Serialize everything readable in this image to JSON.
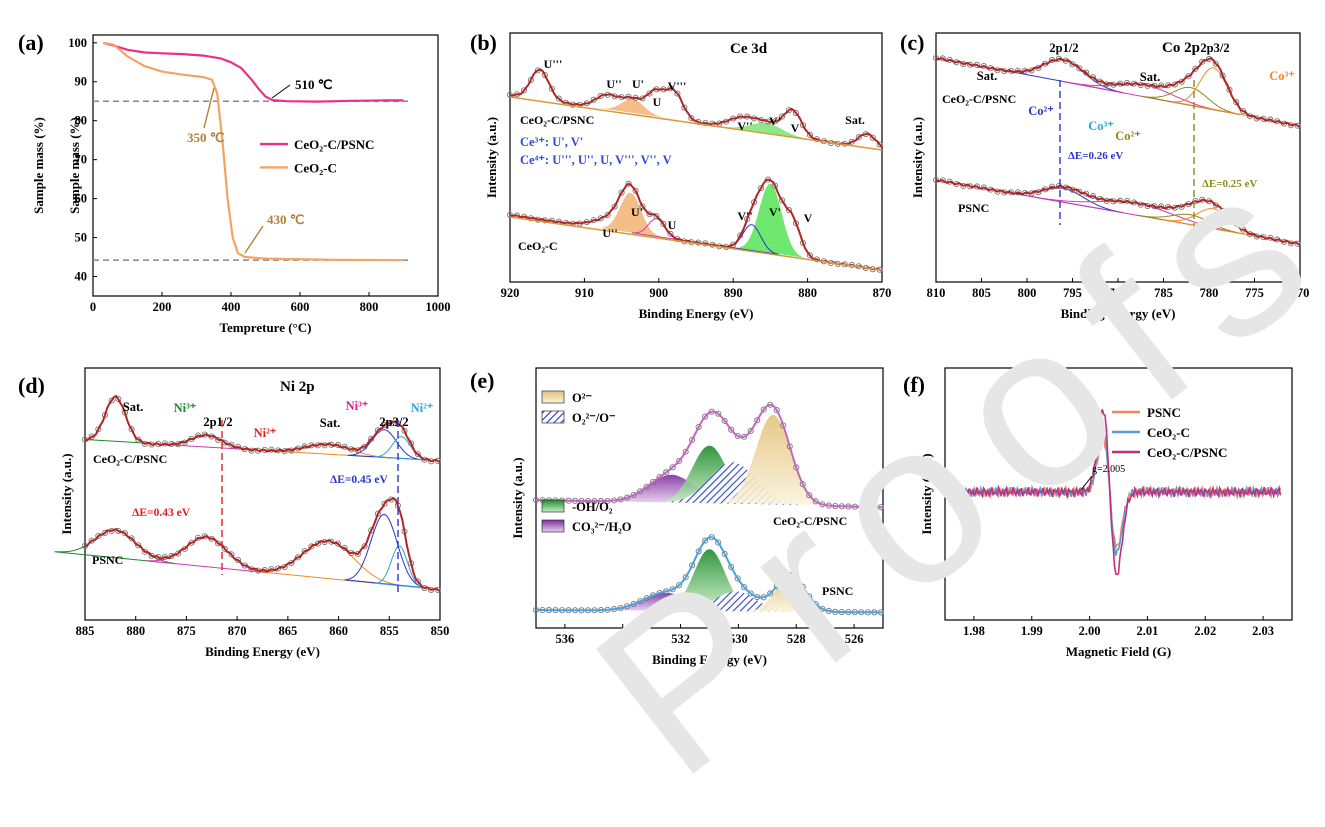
{
  "watermark": "Proofs",
  "panels": {
    "a": {
      "label": "(a)",
      "chart_data": {
        "type": "line",
        "xlabel": "Tempreture (°C)",
        "ylabel": "Sample mass (%)",
        "xlim": [
          0,
          1000
        ],
        "ylim": [
          35,
          102
        ],
        "xticks": [
          0,
          200,
          400,
          600,
          800,
          1000
        ],
        "yticks": [
          40,
          50,
          60,
          70,
          80,
          90,
          100
        ],
        "series": [
          {
            "name": "CeO₂-C/PSNC",
            "color": "#e8308a",
            "points": [
              [
                30,
                100
              ],
              [
                60,
                99.3
              ],
              [
                100,
                98.2
              ],
              [
                150,
                97.5
              ],
              [
                200,
                97.3
              ],
              [
                260,
                97.1
              ],
              [
                320,
                96.7
              ],
              [
                370,
                96
              ],
              [
                400,
                95
              ],
              [
                430,
                93.5
              ],
              [
                460,
                90.5
              ],
              [
                480,
                88.2
              ],
              [
                500,
                86.2
              ],
              [
                520,
                85.3
              ],
              [
                560,
                85
              ],
              [
                650,
                84.9
              ],
              [
                750,
                85.1
              ],
              [
                850,
                85.2
              ],
              [
                900,
                85.2
              ]
            ]
          },
          {
            "name": "CeO₂-C",
            "color": "#f4a460",
            "points": [
              [
                30,
                100
              ],
              [
                60,
                99.5
              ],
              [
                100,
                96.5
              ],
              [
                150,
                94
              ],
              [
                200,
                92.6
              ],
              [
                260,
                91.8
              ],
              [
                320,
                91.2
              ],
              [
                345,
                90.5
              ],
              [
                360,
                87
              ],
              [
                375,
                75
              ],
              [
                390,
                60
              ],
              [
                405,
                50
              ],
              [
                420,
                46
              ],
              [
                440,
                45
              ],
              [
                500,
                44.6
              ],
              [
                700,
                44.3
              ],
              [
                900,
                44.2
              ]
            ]
          }
        ],
        "reference_lines": [
          85,
          44.2
        ],
        "annotations": [
          {
            "text": "510 ℃",
            "x": 510,
            "y": 85
          },
          {
            "text": "350 ℃",
            "x": 350,
            "y": 91
          },
          {
            "text": "430 ℃",
            "x": 430,
            "y": 45
          }
        ]
      }
    },
    "b": {
      "label": "(b)",
      "chart_data": {
        "type": "line",
        "title": "Ce 3d",
        "xlabel": "Binding Energy (eV)",
        "ylabel": "Intensity (a.u.)",
        "xlim": [
          920,
          870
        ],
        "xticks": [
          920,
          910,
          900,
          890,
          880,
          870
        ],
        "series_names": [
          "CeO₂-C/PSNC",
          "CeO₂-C"
        ],
        "peak_labels": [
          "U'''",
          "U''",
          "U'",
          "U",
          "V'''",
          "V''",
          "V'",
          "V",
          "Sat.",
          "U''",
          "U'",
          "U",
          "V''",
          "V'",
          "V"
        ],
        "legend": [
          "Ce³⁺: U', V'",
          "Ce⁴⁺: U''', U'', U, V''', V'', V"
        ]
      }
    },
    "c": {
      "label": "(c)",
      "chart_data": {
        "type": "line",
        "title": "Co 2p",
        "xlabel": "Binding Energy (eV)",
        "ylabel": "Intensity (a.u.)",
        "xlim": [
          810,
          770
        ],
        "xticks": [
          810,
          805,
          800,
          795,
          790,
          785,
          780,
          775,
          770
        ],
        "series_names": [
          "CeO₂-C/PSNC",
          "PSNC"
        ],
        "peak_labels": [
          "Sat.",
          "2p1/2",
          "2p3/2",
          "Sat.",
          "Co²⁺",
          "Co³⁺",
          "Co²⁺",
          "Co³⁺"
        ],
        "annotations": [
          "ΔE=0.26 eV",
          "ΔE=0.25 eV"
        ]
      }
    },
    "d": {
      "label": "(d)",
      "chart_data": {
        "type": "line",
        "title": "Ni 2p",
        "xlabel": "Binding Energy (eV)",
        "ylabel": "Intensity (a.u.)",
        "xlim": [
          885,
          850
        ],
        "xticks": [
          885,
          880,
          875,
          870,
          865,
          860,
          855,
          850
        ],
        "series_names": [
          "CeO₂-C/PSNC",
          "PSNC"
        ],
        "peak_labels": [
          "Sat.",
          "Sat.",
          "2p1/2",
          "2p3/2",
          "Ni³⁺",
          "Ni²⁺",
          "Ni³⁺",
          "Ni²⁺"
        ],
        "annotations": [
          "ΔE=0.43 eV",
          "ΔE=0.45 eV"
        ]
      }
    },
    "e": {
      "label": "(e)",
      "chart_data": {
        "type": "line",
        "xlabel": "Binding Energy (eV)",
        "ylabel": "Intensity (a.u.)",
        "xlim": [
          537,
          525
        ],
        "xticks": [
          536,
          534,
          532,
          530,
          528,
          526
        ],
        "series_names": [
          "CeO₂-C/PSNC",
          "PSNC"
        ],
        "legend": [
          "O²⁻",
          "O₂²⁻/O⁻",
          "-OH/O₂",
          "CO₃²⁻/H₂O"
        ]
      }
    },
    "f": {
      "label": "(f)",
      "chart_data": {
        "type": "line",
        "xlabel": "Magnetic Field (G)",
        "ylabel": "Intensity (a.u.)",
        "xlim": [
          1.975,
          2.035
        ],
        "xticks": [
          "1.98",
          "1.99",
          "2.00",
          "2.01",
          "2.02",
          "2.03"
        ],
        "legend": [
          {
            "name": "PSNC",
            "color": "#f4845f"
          },
          {
            "name": "CeO₂-C",
            "color": "#5b9bd5"
          },
          {
            "name": "CeO₂-C/PSNC",
            "color": "#c2307a"
          }
        ],
        "annotations": [
          "g=2.005"
        ]
      }
    }
  }
}
